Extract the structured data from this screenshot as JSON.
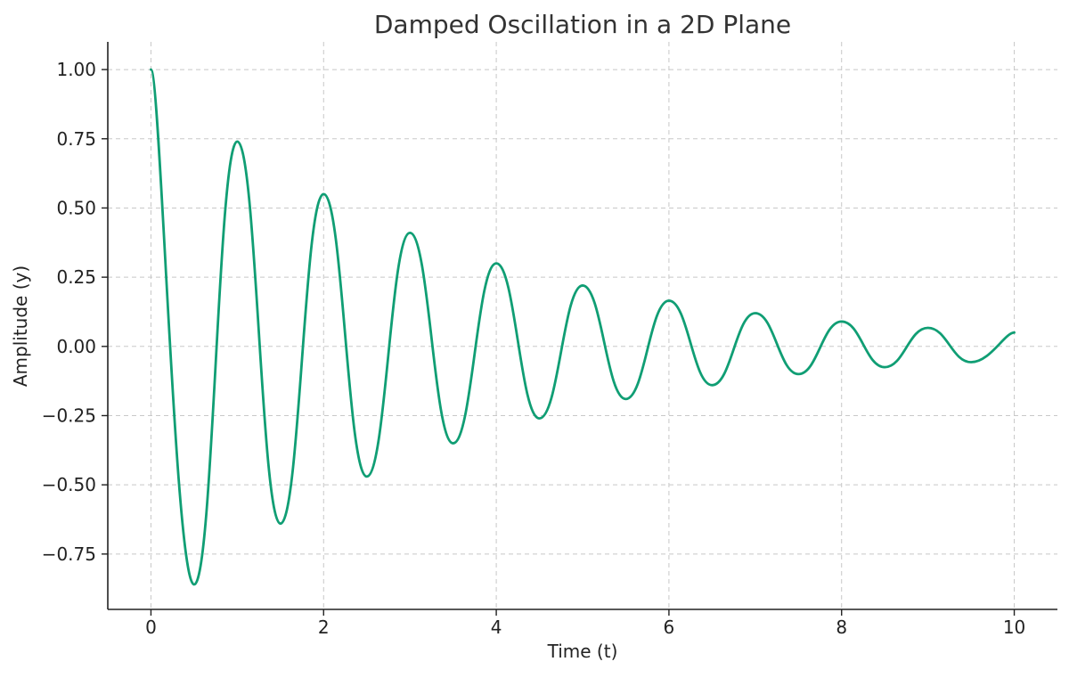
{
  "chart_data": {
    "type": "line",
    "title": "Damped Oscillation in a 2D Plane",
    "xlabel": "Time (t)",
    "ylabel": "Amplitude (y)",
    "xlim": [
      -0.5,
      10.5
    ],
    "ylim": [
      -0.95,
      1.1
    ],
    "xticks": [
      0,
      2,
      4,
      6,
      8,
      10
    ],
    "xtick_labels": [
      "0",
      "2",
      "4",
      "6",
      "8",
      "10"
    ],
    "yticks": [
      -0.75,
      -0.5,
      -0.25,
      0.0,
      0.25,
      0.5,
      0.75,
      1.0
    ],
    "ytick_labels": [
      "−0.75",
      "−0.50",
      "−0.25",
      "0.00",
      "0.25",
      "0.50",
      "0.75",
      "1.00"
    ],
    "grid": true,
    "legend": "none",
    "series": [
      {
        "color": "#109e74",
        "x": [
          0,
          0.5,
          1,
          1.5,
          2,
          2.5,
          3,
          3.5,
          4,
          4.5,
          5,
          5.5,
          6,
          6.5,
          7,
          7.5,
          8,
          8.5,
          9,
          9.5,
          10
        ],
        "y": [
          1.0,
          -0.86,
          0.74,
          -0.64,
          0.55,
          -0.47,
          0.41,
          -0.35,
          0.3,
          -0.26,
          0.22,
          -0.19,
          0.165,
          -0.14,
          0.12,
          -0.1,
          0.09,
          -0.075,
          0.067,
          -0.057,
          0.05
        ]
      }
    ]
  }
}
